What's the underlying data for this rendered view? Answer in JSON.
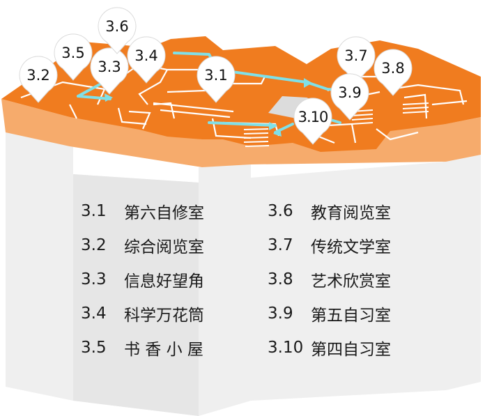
{
  "colors": {
    "floor_top": "#f07c1f",
    "floor_edge": "#f6ab6c",
    "wall_line": "#ffffff",
    "route": "#7fe0e8",
    "pin_fill": "#ffffff",
    "building_body": "#efefef",
    "text": "#1a1a1a"
  },
  "pins": [
    {
      "id": "3.1",
      "label": "3.1"
    },
    {
      "id": "3.2",
      "label": "3.2"
    },
    {
      "id": "3.3",
      "label": "3.3"
    },
    {
      "id": "3.4",
      "label": "3.4"
    },
    {
      "id": "3.5",
      "label": "3.5"
    },
    {
      "id": "3.6",
      "label": "3.6"
    },
    {
      "id": "3.7",
      "label": "3.7"
    },
    {
      "id": "3.8",
      "label": "3.8"
    },
    {
      "id": "3.9",
      "label": "3.9"
    },
    {
      "id": "3.10",
      "label": "3.10"
    }
  ],
  "legend": {
    "left": [
      {
        "code": "3.1",
        "name": "第六自修室"
      },
      {
        "code": "3.2",
        "name": "综合阅览室"
      },
      {
        "code": "3.3",
        "name": "信息好望角"
      },
      {
        "code": "3.4",
        "name": "科学万花筒"
      },
      {
        "code": "3.5",
        "name": "书 香 小 屋"
      }
    ],
    "right": [
      {
        "code": "3.6",
        "name": "教育阅览室"
      },
      {
        "code": "3.7",
        "name": "传统文学室"
      },
      {
        "code": "3.8",
        "name": "艺术欣赏室"
      },
      {
        "code": "3.9",
        "name": "第五自习室"
      },
      {
        "code": "3.10",
        "name": "第四自习室"
      }
    ]
  }
}
